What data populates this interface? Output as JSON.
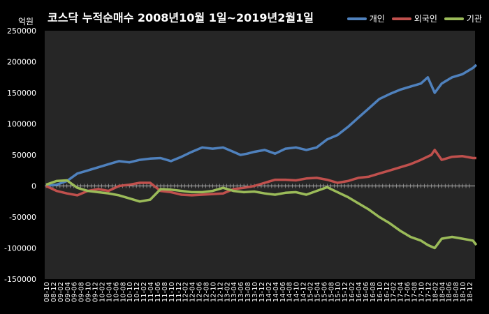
{
  "colors": {
    "background": "#000000",
    "plot_area": "#262626",
    "individual": "#4f81bd",
    "foreign": "#c0504d",
    "institution": "#9bbb59",
    "zero_line": "#bfbfbf"
  },
  "chart_data": {
    "type": "line",
    "title": "코스닥 누적순매수 2008년10월 1일~2019년2월1일",
    "unit": "억원",
    "ylim": [
      -150000,
      250000
    ],
    "yticks": [
      250000,
      200000,
      150000,
      100000,
      50000,
      0,
      -50000,
      -100000,
      -150000
    ],
    "xticks": [
      "08-10",
      "08-12",
      "09-02",
      "09-04",
      "09-06",
      "09-08",
      "09-10",
      "09-12",
      "10-02",
      "10-04",
      "10-06",
      "10-08",
      "10-10",
      "10-12",
      "11-02",
      "11-04",
      "11-06",
      "11-08",
      "11-10",
      "11-12",
      "12-02",
      "12-04",
      "12-06",
      "12-08",
      "12-10",
      "12-12",
      "13-02",
      "13-04",
      "13-06",
      "13-08",
      "13-10",
      "13-12",
      "14-02",
      "14-04",
      "14-06",
      "14-08",
      "14-10",
      "14-12",
      "15-02",
      "15-04",
      "15-06",
      "15-08",
      "15-10",
      "15-12",
      "16-02",
      "16-04",
      "16-06",
      "16-08",
      "16-10",
      "16-12",
      "17-02",
      "17-04",
      "17-06",
      "17-08",
      "17-10",
      "17-12",
      "18-02",
      "18-04",
      "18-06",
      "18-08",
      "18-10",
      "18-12"
    ],
    "legend_position": "top-right",
    "grid": false,
    "series": [
      {
        "name": "개인",
        "color": "#4f81bd",
        "x": [
          "08-10",
          "09-01",
          "09-04",
          "09-07",
          "09-10",
          "10-01",
          "10-04",
          "10-07",
          "10-10",
          "11-01",
          "11-04",
          "11-07",
          "11-10",
          "12-01",
          "12-04",
          "12-07",
          "12-10",
          "13-01",
          "13-04",
          "13-06",
          "13-08",
          "13-10",
          "14-01",
          "14-04",
          "14-07",
          "14-10",
          "15-01",
          "15-04",
          "15-07",
          "15-10",
          "16-01",
          "16-04",
          "16-07",
          "16-10",
          "17-01",
          "17-04",
          "17-07",
          "17-10",
          "17-12",
          "18-02",
          "18-04",
          "18-07",
          "18-10",
          "19-01",
          "19-02"
        ],
        "values": [
          0,
          2000,
          8000,
          20000,
          25000,
          30000,
          35000,
          40000,
          38000,
          42000,
          44000,
          45000,
          40000,
          47000,
          55000,
          62000,
          60000,
          62000,
          55000,
          50000,
          52000,
          55000,
          58000,
          52000,
          60000,
          62000,
          58000,
          62000,
          75000,
          82000,
          95000,
          110000,
          125000,
          140000,
          148000,
          155000,
          160000,
          165000,
          175000,
          150000,
          165000,
          175000,
          180000,
          190000,
          195000
        ]
      },
      {
        "name": "외국인",
        "color": "#c0504d",
        "x": [
          "08-10",
          "09-01",
          "09-04",
          "09-07",
          "09-10",
          "10-01",
          "10-04",
          "10-07",
          "10-10",
          "11-01",
          "11-04",
          "11-07",
          "11-10",
          "12-01",
          "12-04",
          "12-07",
          "12-10",
          "13-01",
          "13-04",
          "13-07",
          "13-10",
          "14-01",
          "14-04",
          "14-07",
          "14-10",
          "15-01",
          "15-04",
          "15-07",
          "15-10",
          "16-01",
          "16-04",
          "16-07",
          "16-10",
          "17-01",
          "17-04",
          "17-07",
          "17-10",
          "18-01",
          "18-02",
          "18-04",
          "18-07",
          "18-10",
          "19-01",
          "19-02"
        ],
        "values": [
          0,
          -8000,
          -12000,
          -15000,
          -8000,
          -5000,
          -8000,
          0,
          2000,
          5000,
          5000,
          -8000,
          -10000,
          -14000,
          -15000,
          -14000,
          -13000,
          -12000,
          -5000,
          -3000,
          0,
          5000,
          10000,
          10000,
          9000,
          12000,
          13000,
          10000,
          5000,
          8000,
          13000,
          15000,
          20000,
          25000,
          30000,
          35000,
          42000,
          50000,
          58000,
          42000,
          47000,
          48000,
          45000,
          45000
        ]
      },
      {
        "name": "기관",
        "color": "#9bbb59",
        "x": [
          "08-10",
          "09-01",
          "09-04",
          "09-07",
          "09-10",
          "10-01",
          "10-04",
          "10-07",
          "10-10",
          "11-01",
          "11-04",
          "11-07",
          "11-10",
          "12-01",
          "12-04",
          "12-07",
          "12-10",
          "13-01",
          "13-04",
          "13-07",
          "13-10",
          "14-01",
          "14-04",
          "14-07",
          "14-10",
          "15-01",
          "15-04",
          "15-07",
          "15-10",
          "16-01",
          "16-04",
          "16-07",
          "16-10",
          "17-01",
          "17-04",
          "17-07",
          "17-10",
          "17-12",
          "18-02",
          "18-04",
          "18-07",
          "18-10",
          "19-01",
          "19-02"
        ],
        "values": [
          2000,
          8000,
          9000,
          -3000,
          -8000,
          -10000,
          -12000,
          -15000,
          -20000,
          -25000,
          -22000,
          -5000,
          -6000,
          -8000,
          -10000,
          -10000,
          -8000,
          -3000,
          -8000,
          -10000,
          -9000,
          -12000,
          -14000,
          -11000,
          -10000,
          -14000,
          -8000,
          -2000,
          -10000,
          -18000,
          -28000,
          -38000,
          -50000,
          -60000,
          -72000,
          -82000,
          -88000,
          -95000,
          -100000,
          -85000,
          -82000,
          -85000,
          -88000,
          -95000
        ]
      }
    ]
  }
}
